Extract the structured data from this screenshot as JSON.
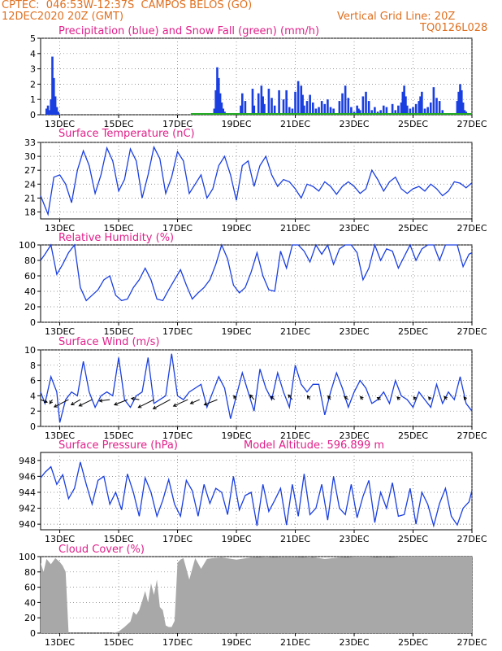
{
  "header": {
    "source_line": "CPTEC:  046:53W-12:37S  CAMPOS BELOS (GO)",
    "date_line": "12DEC2020 20Z (GMT)",
    "grid_note": "Vertical Grid Line: 20Z",
    "run_code": "TQ0126L028"
  },
  "colors": {
    "header": "#e07020",
    "title": "#e0208a",
    "line": "#1a3fe0",
    "snow": "#22aa22",
    "cloud": "#a8a8a8",
    "wind": "#000000"
  },
  "x_axis": {
    "tick_labels": [
      "13DEC",
      "15DEC",
      "17DEC",
      "19DEC",
      "21DEC",
      "23DEC",
      "25DEC",
      "27DEC"
    ],
    "tick_days": [
      13,
      15,
      17,
      19,
      21,
      23,
      25,
      27
    ],
    "range_days": [
      12.35,
      27.0
    ]
  },
  "chart_data": [
    {
      "type": "bar",
      "title": "Precipitation (blue) and Snow Fall (green) (mm/h)",
      "ylim": [
        0,
        5
      ],
      "yticks": [
        0,
        1,
        2,
        3,
        4,
        5
      ],
      "x": [
        12.55,
        12.6,
        12.65,
        12.7,
        12.75,
        12.8,
        12.85,
        12.9,
        12.95,
        18.25,
        18.3,
        18.35,
        18.4,
        18.45,
        18.5,
        18.55,
        18.6,
        19.15,
        19.2,
        19.3,
        19.55,
        19.6,
        19.75,
        19.85,
        19.9,
        19.95,
        20.1,
        20.2,
        20.3,
        20.45,
        20.6,
        20.7,
        20.8,
        20.9,
        21.0,
        21.1,
        21.2,
        21.25,
        21.3,
        21.4,
        21.5,
        21.6,
        21.7,
        21.8,
        21.9,
        22.0,
        22.1,
        22.2,
        22.3,
        22.5,
        22.6,
        22.7,
        22.8,
        22.9,
        23.0,
        23.1,
        23.15,
        23.2,
        23.3,
        23.4,
        23.5,
        23.6,
        23.7,
        23.8,
        23.9,
        24.0,
        24.1,
        24.3,
        24.4,
        24.5,
        24.6,
        24.65,
        24.7,
        24.75,
        24.8,
        24.9,
        25.0,
        25.1,
        25.2,
        25.25,
        25.3,
        25.4,
        25.5,
        25.6,
        25.7,
        25.8,
        25.9,
        26.0,
        26.5,
        26.55,
        26.6,
        26.65,
        26.7,
        26.75,
        26.8
      ],
      "values": [
        0.4,
        0.6,
        0.3,
        1.0,
        3.8,
        2.4,
        1.2,
        0.5,
        0.2,
        0.4,
        1.6,
        3.1,
        2.4,
        1.4,
        0.8,
        0.4,
        0.2,
        0.6,
        1.4,
        0.9,
        1.7,
        0.6,
        1.4,
        1.9,
        1.2,
        0.7,
        1.7,
        1.1,
        0.6,
        1.6,
        1.0,
        1.6,
        0.5,
        0.4,
        1.5,
        2.2,
        1.9,
        1.3,
        0.6,
        0.9,
        1.3,
        0.8,
        0.4,
        0.5,
        0.9,
        0.7,
        1.0,
        0.5,
        0.4,
        0.9,
        1.4,
        1.9,
        1.1,
        0.5,
        0.2,
        0.6,
        0.4,
        0.3,
        1.2,
        1.5,
        0.9,
        0.3,
        0.5,
        0.2,
        0.3,
        0.6,
        0.5,
        0.7,
        0.3,
        0.6,
        0.8,
        1.5,
        1.9,
        1.2,
        0.6,
        0.4,
        0.5,
        0.7,
        0.9,
        1.2,
        1.5,
        0.4,
        0.5,
        0.8,
        1.8,
        1.1,
        0.9,
        0.3,
        0.9,
        1.5,
        2.0,
        1.6,
        0.8,
        0.3,
        0.2
      ],
      "snowfall_mm_h": [
        0,
        0
      ],
      "snowfall_x": [
        17.45,
        27.0
      ]
    },
    {
      "type": "line",
      "title": "Surface Temperature (nC)",
      "ylim": [
        16.5,
        33
      ],
      "yticks": [
        18,
        21,
        24,
        27,
        30,
        33
      ],
      "x": [
        12.35,
        12.6,
        12.8,
        13.0,
        13.2,
        13.4,
        13.6,
        13.8,
        14.0,
        14.2,
        14.4,
        14.6,
        14.8,
        15.0,
        15.2,
        15.4,
        15.6,
        15.8,
        16.0,
        16.2,
        16.4,
        16.6,
        16.8,
        17.0,
        17.2,
        17.4,
        17.6,
        17.8,
        18.0,
        18.2,
        18.4,
        18.6,
        18.8,
        19.0,
        19.2,
        19.4,
        19.6,
        19.8,
        20.0,
        20.2,
        20.4,
        20.6,
        20.8,
        21.0,
        21.2,
        21.4,
        21.6,
        21.8,
        22.0,
        22.2,
        22.4,
        22.6,
        22.8,
        23.0,
        23.2,
        23.4,
        23.6,
        23.8,
        24.0,
        24.2,
        24.4,
        24.6,
        24.8,
        25.0,
        25.2,
        25.4,
        25.6,
        25.8,
        26.0,
        26.2,
        26.4,
        26.6,
        26.8,
        27.0
      ],
      "values": [
        21.5,
        17.5,
        25.5,
        26.0,
        24.0,
        20.0,
        27.0,
        31.2,
        28.0,
        22.0,
        26.0,
        31.8,
        29.0,
        22.5,
        25.0,
        31.6,
        29.0,
        21.0,
        26.0,
        32.0,
        29.5,
        22.0,
        25.5,
        31.0,
        29.0,
        22.0,
        24.0,
        26.0,
        21.0,
        23.0,
        28.0,
        30.0,
        26.0,
        20.5,
        28.0,
        29.0,
        23.5,
        28.0,
        30.0,
        26.0,
        23.5,
        25.0,
        24.5,
        23.0,
        21.0,
        24.0,
        23.5,
        22.5,
        24.5,
        23.5,
        21.8,
        23.5,
        24.5,
        23.5,
        22.0,
        23.0,
        27.0,
        25.0,
        22.5,
        24.5,
        25.5,
        23.0,
        22.0,
        23.0,
        23.5,
        22.5,
        24.0,
        23.0,
        21.5,
        22.5,
        24.5,
        24.2,
        23.2,
        24.3
      ]
    },
    {
      "type": "line",
      "title": "Relative Humidity (%)",
      "ylim": [
        0,
        100
      ],
      "yticks": [
        0,
        20,
        40,
        60,
        80,
        100
      ],
      "x": [
        12.35,
        12.5,
        12.7,
        12.9,
        13.1,
        13.3,
        13.5,
        13.7,
        13.9,
        14.1,
        14.3,
        14.5,
        14.7,
        14.9,
        15.1,
        15.3,
        15.5,
        15.7,
        15.9,
        16.1,
        16.3,
        16.5,
        16.7,
        16.9,
        17.1,
        17.3,
        17.5,
        17.7,
        17.9,
        18.1,
        18.3,
        18.5,
        18.7,
        18.9,
        19.1,
        19.3,
        19.5,
        19.7,
        19.9,
        20.1,
        20.3,
        20.5,
        20.7,
        20.9,
        21.1,
        21.3,
        21.5,
        21.7,
        21.9,
        22.1,
        22.3,
        22.5,
        22.7,
        22.9,
        23.1,
        23.3,
        23.5,
        23.7,
        23.9,
        24.1,
        24.3,
        24.5,
        24.7,
        24.9,
        25.1,
        25.3,
        25.5,
        25.7,
        25.9,
        26.1,
        26.3,
        26.5,
        26.7,
        26.9,
        27.0
      ],
      "values": [
        80,
        88,
        100,
        62,
        75,
        90,
        100,
        45,
        28,
        35,
        42,
        55,
        60,
        35,
        28,
        30,
        45,
        55,
        70,
        55,
        30,
        28,
        42,
        55,
        68,
        48,
        30,
        38,
        45,
        55,
        75,
        100,
        82,
        48,
        38,
        45,
        65,
        90,
        60,
        42,
        40,
        92,
        70,
        100,
        100,
        92,
        78,
        100,
        88,
        100,
        75,
        95,
        100,
        100,
        90,
        55,
        70,
        100,
        80,
        95,
        92,
        70,
        85,
        100,
        80,
        95,
        100,
        100,
        80,
        100,
        100,
        100,
        72,
        88,
        90
      ]
    },
    {
      "type": "line",
      "title": "Surface Wind (m/s)",
      "ylim": [
        0,
        10
      ],
      "yticks": [
        0,
        2,
        4,
        6,
        8,
        10
      ],
      "x": [
        12.35,
        12.5,
        12.7,
        12.9,
        13.0,
        13.2,
        13.4,
        13.6,
        13.8,
        14.0,
        14.2,
        14.4,
        14.6,
        14.8,
        15.0,
        15.2,
        15.4,
        15.6,
        15.8,
        16.0,
        16.2,
        16.4,
        16.6,
        16.8,
        17.0,
        17.2,
        17.4,
        17.6,
        17.8,
        18.0,
        18.2,
        18.4,
        18.6,
        18.8,
        19.0,
        19.2,
        19.4,
        19.6,
        19.8,
        20.0,
        20.2,
        20.4,
        20.6,
        20.8,
        21.0,
        21.2,
        21.4,
        21.6,
        21.8,
        22.0,
        22.2,
        22.4,
        22.6,
        22.8,
        23.0,
        23.2,
        23.4,
        23.6,
        23.8,
        24.0,
        24.2,
        24.4,
        24.6,
        24.8,
        25.0,
        25.2,
        25.4,
        25.6,
        25.8,
        26.0,
        26.2,
        26.4,
        26.6,
        26.8,
        27.0
      ],
      "values": [
        4.5,
        3.0,
        6.5,
        4.5,
        0.5,
        3.5,
        4.5,
        4.0,
        8.5,
        4.5,
        2.5,
        4.0,
        4.5,
        4.0,
        9.0,
        3.5,
        2.5,
        4.0,
        4.5,
        9.0,
        3.0,
        3.5,
        4.0,
        9.5,
        4.0,
        3.5,
        4.5,
        5.0,
        5.5,
        2.5,
        4.5,
        6.5,
        5.0,
        1.0,
        4.0,
        7.0,
        4.5,
        2.0,
        7.5,
        5.0,
        3.5,
        7.0,
        4.5,
        2.5,
        8.0,
        5.5,
        4.5,
        5.5,
        5.5,
        1.5,
        4.5,
        7.0,
        5.0,
        2.5,
        4.5,
        6.0,
        5.0,
        3.0,
        3.5,
        4.5,
        3.0,
        6.0,
        4.0,
        3.5,
        2.5,
        4.5,
        3.5,
        2.5,
        5.5,
        3.0,
        4.5,
        3.5,
        6.5,
        3.0,
        2.0
      ],
      "wind_arrows": [
        {
          "day": 12.35,
          "u": 2.5,
          "v": -1.0
        },
        {
          "day": 12.75,
          "u": -1.0,
          "v": -1.5
        },
        {
          "day": 13.3,
          "u": -5.5,
          "v": -2.8
        },
        {
          "day": 13.7,
          "u": -3.5,
          "v": -2.0
        },
        {
          "day": 14.1,
          "u": -5.0,
          "v": -2.4
        },
        {
          "day": 14.7,
          "u": -4.0,
          "v": -0.5
        },
        {
          "day": 15.3,
          "u": -5.0,
          "v": -2.0
        },
        {
          "day": 15.7,
          "u": -3.0,
          "v": 0.5
        },
        {
          "day": 16.2,
          "u": -6.0,
          "v": -3.0
        },
        {
          "day": 16.75,
          "u": -6.5,
          "v": -3.5
        },
        {
          "day": 17.35,
          "u": -5.5,
          "v": -2.5
        },
        {
          "day": 17.75,
          "u": -3.5,
          "v": -1.5
        },
        {
          "day": 18.35,
          "u": -5.0,
          "v": -2.0
        },
        {
          "day": 19.0,
          "u": -1.0,
          "v": 1.5
        },
        {
          "day": 19.6,
          "u": -1.5,
          "v": 1.8
        },
        {
          "day": 20.3,
          "u": -1.5,
          "v": 1.2
        },
        {
          "day": 20.9,
          "u": -1.5,
          "v": 1.8
        },
        {
          "day": 21.5,
          "u": -1.0,
          "v": 1.5
        },
        {
          "day": 22.2,
          "u": -1.0,
          "v": 1.4
        },
        {
          "day": 22.8,
          "u": -1.5,
          "v": 1.2
        },
        {
          "day": 23.3,
          "u": -1.0,
          "v": 1.2
        },
        {
          "day": 23.9,
          "u": -1.3,
          "v": 0.8
        },
        {
          "day": 24.55,
          "u": -1.0,
          "v": 1.0
        },
        {
          "day": 25.1,
          "u": -0.9,
          "v": 1.0
        },
        {
          "day": 25.6,
          "u": -0.8,
          "v": 1.0
        },
        {
          "day": 26.15,
          "u": -1.0,
          "v": 1.2
        },
        {
          "day": 26.8,
          "u": -0.8,
          "v": 1.0
        }
      ]
    },
    {
      "type": "line",
      "title": "Surface Pressure (hPa)",
      "annotation": "Model Altitude: 596.899  m",
      "ylim": [
        939.3,
        949
      ],
      "yticks": [
        940,
        942,
        944,
        946,
        948
      ],
      "x": [
        12.35,
        12.5,
        12.7,
        12.9,
        13.1,
        13.3,
        13.5,
        13.7,
        13.9,
        14.1,
        14.3,
        14.5,
        14.7,
        14.9,
        15.1,
        15.3,
        15.5,
        15.7,
        15.9,
        16.1,
        16.3,
        16.5,
        16.7,
        16.9,
        17.1,
        17.3,
        17.5,
        17.7,
        17.9,
        18.1,
        18.3,
        18.5,
        18.7,
        18.9,
        19.1,
        19.3,
        19.5,
        19.7,
        19.9,
        20.1,
        20.3,
        20.5,
        20.7,
        20.9,
        21.1,
        21.3,
        21.5,
        21.7,
        21.9,
        22.1,
        22.3,
        22.5,
        22.7,
        22.9,
        23.1,
        23.3,
        23.5,
        23.7,
        23.9,
        24.1,
        24.3,
        24.5,
        24.7,
        24.9,
        25.1,
        25.3,
        25.5,
        25.7,
        25.9,
        26.1,
        26.3,
        26.5,
        26.7,
        26.9,
        27.0
      ],
      "values": [
        945.8,
        946.5,
        947.2,
        945.0,
        946.2,
        943.2,
        944.5,
        947.8,
        945.0,
        942.5,
        945.5,
        946.0,
        942.5,
        944.0,
        941.8,
        946.3,
        944.0,
        941.0,
        945.8,
        944.0,
        941.0,
        943.0,
        945.6,
        942.5,
        941.0,
        945.5,
        944.2,
        941.0,
        945.0,
        942.6,
        944.5,
        944.0,
        941.2,
        946.0,
        941.8,
        943.6,
        944.0,
        939.8,
        945.0,
        941.6,
        943.0,
        944.5,
        939.9,
        945.0,
        941.0,
        946.3,
        941.2,
        942.0,
        945.0,
        940.5,
        946.0,
        942.0,
        941.2,
        945.0,
        940.8,
        943.5,
        945.5,
        940.2,
        944.0,
        942.0,
        945.2,
        941.0,
        941.2,
        944.5,
        940.0,
        944.0,
        942.5,
        939.8,
        942.6,
        944.5,
        941.0,
        939.9,
        942.0,
        942.8,
        944.2
      ]
    },
    {
      "type": "area",
      "title": "Cloud Cover (%)",
      "ylim": [
        0,
        100
      ],
      "yticks": [
        0,
        20,
        40,
        60,
        80,
        100
      ],
      "x": [
        12.35,
        12.45,
        12.55,
        12.7,
        12.85,
        13.0,
        13.1,
        13.2,
        13.3,
        13.5,
        13.7,
        14.0,
        14.2,
        14.4,
        14.6,
        14.8,
        15.0,
        15.2,
        15.4,
        15.5,
        15.6,
        15.7,
        15.8,
        15.9,
        16.0,
        16.1,
        16.2,
        16.3,
        16.4,
        16.5,
        16.6,
        16.7,
        16.8,
        16.9,
        17.0,
        17.1,
        17.2,
        17.4,
        17.6,
        17.8,
        18.0,
        18.2,
        18.5,
        19.0,
        19.5,
        20.0,
        20.5,
        21.0,
        21.5,
        22.0,
        22.5,
        23.0,
        23.5,
        24.0,
        24.5,
        25.0,
        25.5,
        26.0,
        26.5,
        27.0
      ],
      "values": [
        92,
        80,
        97,
        90,
        98,
        93,
        88,
        80,
        0,
        0,
        0,
        0,
        0,
        0,
        0,
        0,
        2,
        8,
        15,
        28,
        24,
        30,
        42,
        55,
        40,
        65,
        50,
        70,
        34,
        30,
        10,
        8,
        8,
        16,
        92,
        96,
        98,
        70,
        98,
        84,
        97,
        98,
        99,
        96,
        99,
        100,
        99,
        99,
        100,
        97,
        99,
        100,
        100,
        99,
        100,
        100,
        100,
        100,
        100,
        100
      ]
    }
  ]
}
